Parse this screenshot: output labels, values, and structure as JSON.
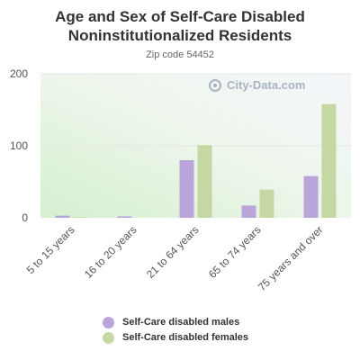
{
  "title_line1": "Age and Sex of Self-Care Disabled",
  "title_line2": "Noninstitutionalized Residents",
  "subtitle": "Zip code 54452",
  "watermark": "City-Data.com",
  "chart_data": {
    "type": "bar",
    "title": "Age and Sex of Self-Care Disabled Noninstitutionalized Residents",
    "subtitle": "Zip code 54452",
    "categories": [
      "5 to 15 years",
      "16 to 20 years",
      "21 to 64 years",
      "65 to 74 years",
      "75 years and over"
    ],
    "series": [
      {
        "name": "Self-Care disabled males",
        "color": "#b9a5d9",
        "values": [
          3,
          2,
          80,
          17,
          58
        ]
      },
      {
        "name": "Self-Care disabled females",
        "color": "#c5d8a3",
        "values": [
          1,
          0,
          101,
          39,
          158
        ]
      }
    ],
    "yticks": [
      0,
      100,
      200
    ],
    "ylim": [
      0,
      200
    ],
    "xlabel": "",
    "ylabel": "",
    "grid": true,
    "legend_position": "bottom"
  }
}
